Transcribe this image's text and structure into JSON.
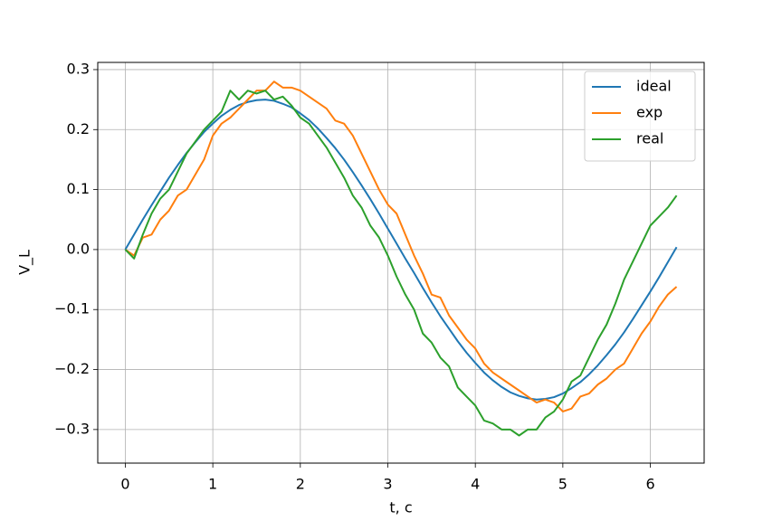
{
  "chart_data": {
    "type": "line",
    "xlabel": "t, c",
    "ylabel": "V_L",
    "x": [
      0,
      0.1,
      0.2,
      0.3,
      0.4,
      0.5,
      0.6,
      0.7,
      0.8,
      0.9,
      1.0,
      1.1,
      1.2,
      1.3,
      1.4,
      1.5,
      1.6,
      1.7,
      1.8,
      1.9,
      2.0,
      2.1,
      2.2,
      2.3,
      2.4,
      2.5,
      2.6,
      2.7,
      2.8,
      2.9,
      3.0,
      3.1,
      3.2,
      3.3,
      3.4,
      3.5,
      3.6,
      3.7,
      3.8,
      3.9,
      4.0,
      4.1,
      4.2,
      4.3,
      4.4,
      4.5,
      4.6,
      4.7,
      4.8,
      4.9,
      5.0,
      5.1,
      5.2,
      5.3,
      5.4,
      5.5,
      5.6,
      5.7,
      5.8,
      5.9,
      6.0,
      6.1,
      6.2,
      6.3
    ],
    "series": [
      {
        "name": "ideal",
        "color": "#1f77b4",
        "values": [
          0,
          0.025,
          0.05,
          0.074,
          0.097,
          0.12,
          0.141,
          0.161,
          0.179,
          0.196,
          0.21,
          0.223,
          0.233,
          0.241,
          0.246,
          0.249,
          0.25,
          0.248,
          0.243,
          0.237,
          0.227,
          0.216,
          0.202,
          0.186,
          0.169,
          0.15,
          0.129,
          0.107,
          0.084,
          0.06,
          0.035,
          0.01,
          -0.015,
          -0.039,
          -0.064,
          -0.088,
          -0.111,
          -0.132,
          -0.153,
          -0.172,
          -0.189,
          -0.205,
          -0.218,
          -0.229,
          -0.238,
          -0.244,
          -0.248,
          -0.25,
          -0.249,
          -0.246,
          -0.24,
          -0.231,
          -0.221,
          -0.208,
          -0.193,
          -0.176,
          -0.158,
          -0.138,
          -0.116,
          -0.093,
          -0.07,
          -0.046,
          -0.021,
          0.004
        ]
      },
      {
        "name": "exp",
        "color": "#ff7f0e",
        "values": [
          0,
          -0.01,
          0.02,
          0.025,
          0.05,
          0.065,
          0.09,
          0.1,
          0.125,
          0.15,
          0.19,
          0.21,
          0.22,
          0.235,
          0.25,
          0.265,
          0.265,
          0.28,
          0.27,
          0.27,
          0.265,
          0.255,
          0.245,
          0.235,
          0.215,
          0.21,
          0.19,
          0.16,
          0.13,
          0.1,
          0.075,
          0.06,
          0.025,
          -0.01,
          -0.04,
          -0.075,
          -0.08,
          -0.11,
          -0.13,
          -0.15,
          -0.165,
          -0.19,
          -0.205,
          -0.215,
          -0.225,
          -0.235,
          -0.245,
          -0.255,
          -0.25,
          -0.255,
          -0.27,
          -0.265,
          -0.245,
          -0.24,
          -0.225,
          -0.215,
          -0.2,
          -0.19,
          -0.165,
          -0.14,
          -0.12,
          -0.095,
          -0.075,
          -0.062
        ]
      },
      {
        "name": "real",
        "color": "#2ca02c",
        "values": [
          0,
          -0.015,
          0.025,
          0.06,
          0.085,
          0.1,
          0.13,
          0.16,
          0.18,
          0.2,
          0.215,
          0.23,
          0.265,
          0.25,
          0.265,
          0.26,
          0.265,
          0.25,
          0.255,
          0.24,
          0.22,
          0.21,
          0.19,
          0.17,
          0.145,
          0.12,
          0.09,
          0.07,
          0.04,
          0.02,
          -0.01,
          -0.045,
          -0.075,
          -0.1,
          -0.14,
          -0.155,
          -0.18,
          -0.195,
          -0.23,
          -0.245,
          -0.26,
          -0.285,
          -0.29,
          -0.3,
          -0.3,
          -0.31,
          -0.3,
          -0.3,
          -0.28,
          -0.27,
          -0.25,
          -0.22,
          -0.21,
          -0.18,
          -0.15,
          -0.125,
          -0.09,
          -0.05,
          -0.02,
          0.01,
          0.04,
          0.055,
          0.07,
          0.09
        ]
      }
    ],
    "xlim": [
      -0.315,
      6.615
    ],
    "ylim": [
      -0.356,
      0.312
    ],
    "xticks": [
      0,
      1,
      2,
      3,
      4,
      5,
      6
    ],
    "yticks": [
      {
        "value": -0.3,
        "label": "−0.3"
      },
      {
        "value": -0.2,
        "label": "−0.2"
      },
      {
        "value": -0.1,
        "label": "−0.1"
      },
      {
        "value": 0,
        "label": "0.0"
      },
      0.1,
      0.2,
      0.3
    ],
    "grid": true,
    "legend": "upper right"
  }
}
